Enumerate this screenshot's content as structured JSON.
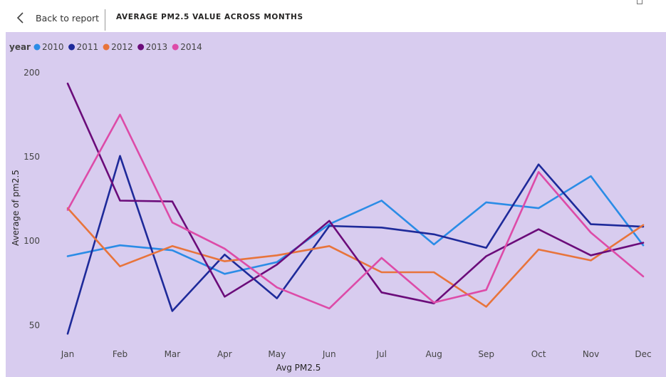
{
  "header": {
    "back_label": "Back to report",
    "title": "AVERAGE PM2.5 VALUE ACROSS MONTHS"
  },
  "colors": {
    "plot_background": "#d8ccef",
    "axis_text": "#252423",
    "tick_text": "#444444"
  },
  "icons": {
    "back": "chevron-left-icon",
    "corner": "focus-mode-icon"
  },
  "chart_data": {
    "type": "line",
    "title": "",
    "xlabel": "Avg PM2.5",
    "ylabel": "Average of pm2.5",
    "legend_title": "year",
    "legend_position": "top-left",
    "grid": false,
    "ylim": [
      43,
      205
    ],
    "yticks": [
      50,
      100,
      150,
      200
    ],
    "categories": [
      "Jan",
      "Feb",
      "Mar",
      "Apr",
      "May",
      "Jun",
      "Jul",
      "Aug",
      "Sep",
      "Oct",
      "Nov",
      "Dec"
    ],
    "series": [
      {
        "name": "2010",
        "color": "#2b8ce6",
        "values": [
          91,
          97.5,
          94.5,
          80.5,
          87.5,
          110,
          124,
          98,
          123,
          119.5,
          138.5,
          97.5
        ]
      },
      {
        "name": "2011",
        "color": "#1e2a9a",
        "values": [
          45,
          150.5,
          58.5,
          92,
          66,
          109,
          108,
          104,
          96,
          145.5,
          110,
          108.5
        ]
      },
      {
        "name": "2012",
        "color": "#e8743b",
        "values": [
          119.5,
          85,
          97,
          88,
          91.5,
          97,
          81.5,
          81.5,
          61,
          95,
          88.5,
          109.5
        ]
      },
      {
        "name": "2013",
        "color": "#6b0c7a",
        "values": [
          193.5,
          124,
          123.5,
          67,
          86,
          112,
          69.5,
          63,
          91,
          107,
          91.5,
          99
        ]
      },
      {
        "name": "2014",
        "color": "#dd4ba8",
        "values": [
          118.5,
          175,
          111,
          95.5,
          72.5,
          60,
          90,
          63.5,
          71,
          141,
          105,
          79
        ]
      }
    ]
  }
}
